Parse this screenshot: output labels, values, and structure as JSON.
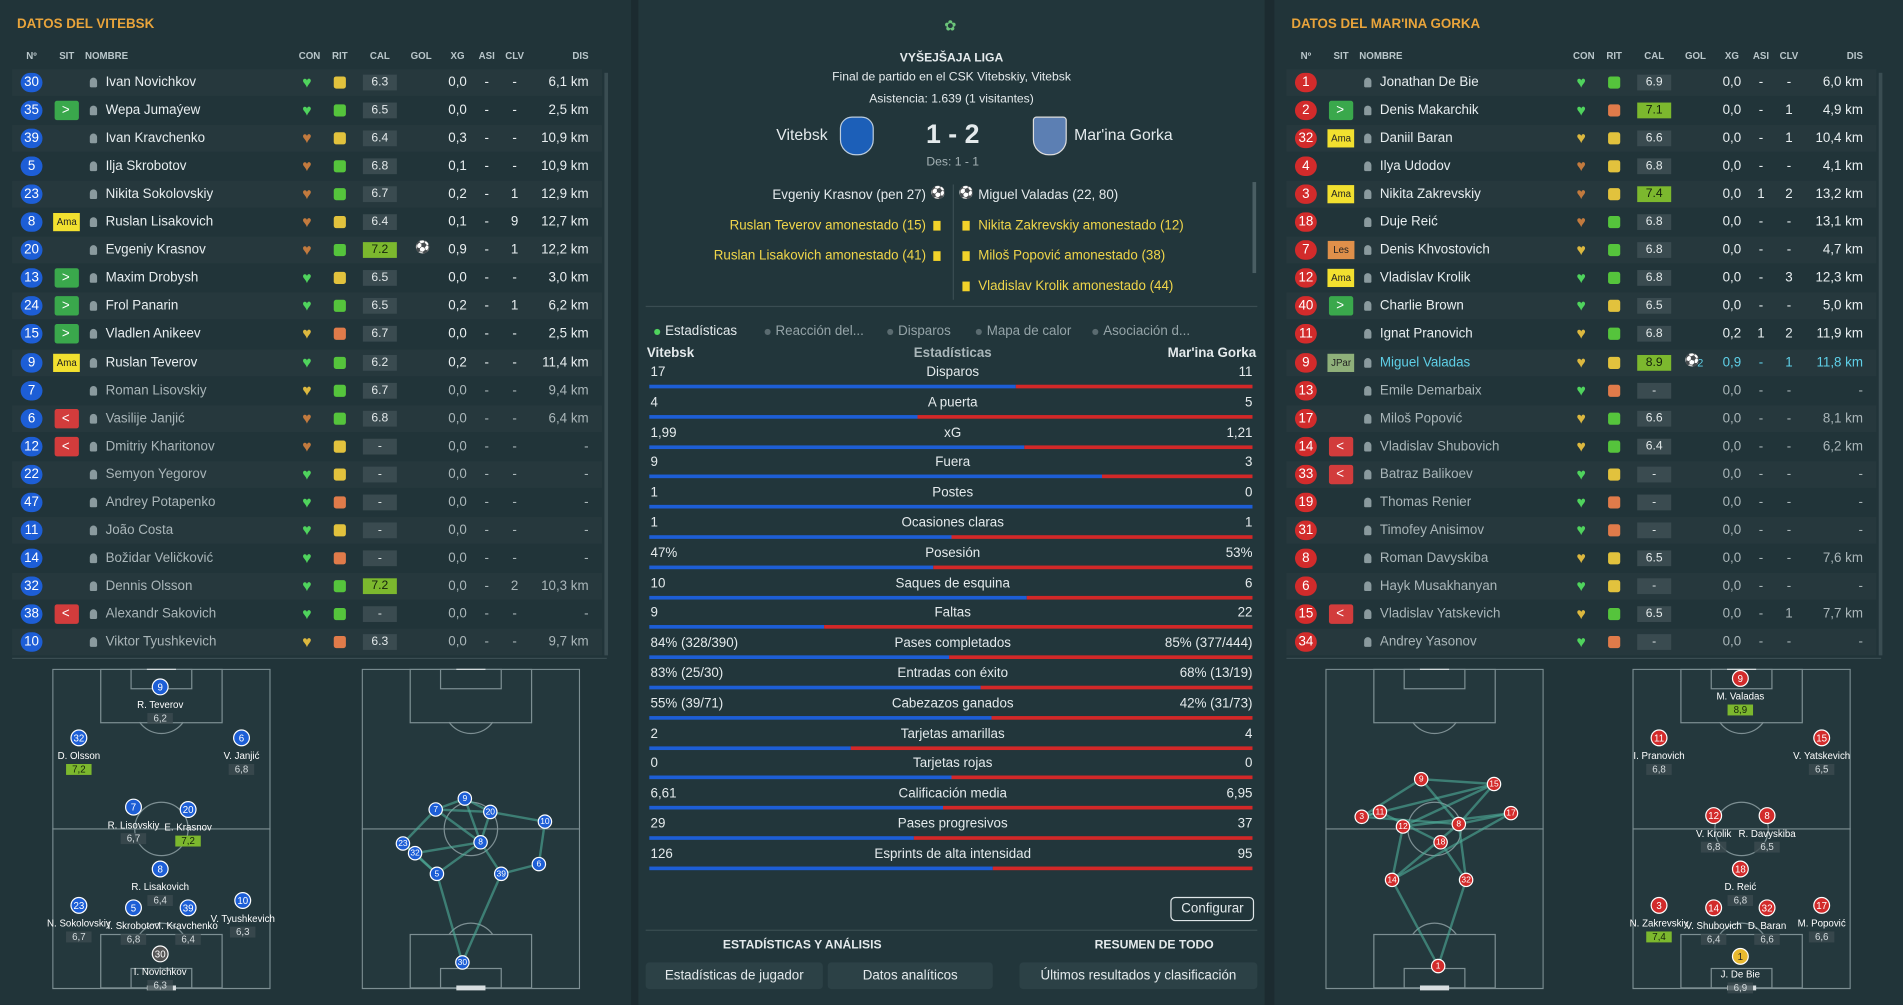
{
  "home": {
    "title": "DATOS DEL VITEBSK",
    "columns": [
      "Nº",
      "SIT",
      "NOMBRE",
      "CON",
      "RIT",
      "CAL",
      "GOL",
      "XG",
      "ASI",
      "CLV",
      "DIS"
    ],
    "players": [
      {
        "number": 30,
        "name": "Ivan Novichkov",
        "rating": "6.3",
        "xg": "0,0",
        "assists": "-",
        "key_passes": "-",
        "distance": "6,1 km"
      },
      {
        "number": 35,
        "name": "Wepa Jumaýew",
        "rating": "6.5",
        "xg": "0,0",
        "assists": "-",
        "key_passes": "-",
        "distance": "2,5 km"
      },
      {
        "number": 39,
        "name": "Ivan Kravchenko",
        "rating": "6.4",
        "xg": "0,3",
        "assists": "-",
        "key_passes": "-",
        "distance": "10,9 km"
      },
      {
        "number": 5,
        "name": "Ilja Skrobotov",
        "rating": "6.8",
        "xg": "0,1",
        "assists": "-",
        "key_passes": "-",
        "distance": "10,9 km"
      },
      {
        "number": 23,
        "name": "Nikita Sokolovskiy",
        "rating": "6.7",
        "xg": "0,2",
        "assists": "-",
        "key_passes": "1",
        "distance": "12,9 km"
      },
      {
        "number": 8,
        "status": "Ama",
        "name": "Ruslan Lisakovich",
        "rating": "6.4",
        "xg": "0,1",
        "assists": "-",
        "key_passes": "9",
        "distance": "12,7 km"
      },
      {
        "number": 20,
        "name": "Evgeniy Krasnov",
        "rating": "7.2",
        "xg": "0,9",
        "assists": "-",
        "key_passes": "1",
        "distance": "12,2 km"
      },
      {
        "number": 13,
        "name": "Maxim Drobysh",
        "rating": "6.5",
        "xg": "0,0",
        "assists": "-",
        "key_passes": "-",
        "distance": "3,0 km"
      },
      {
        "number": 24,
        "name": "Frol Panarin",
        "rating": "6.5",
        "xg": "0,2",
        "assists": "-",
        "key_passes": "1",
        "distance": "6,2 km"
      },
      {
        "number": 15,
        "name": "Vladlen Anikeev",
        "rating": "6.7",
        "xg": "0,0",
        "assists": "-",
        "key_passes": "-",
        "distance": "2,5 km"
      },
      {
        "number": 9,
        "status": "Ama",
        "name": "Ruslan Teverov",
        "rating": "6.2",
        "xg": "0,2",
        "assists": "-",
        "key_passes": "-",
        "distance": "11,4 km"
      },
      {
        "number": 7,
        "name": "Roman Lisovskiy",
        "rating": "6.7",
        "xg": "0,0",
        "assists": "-",
        "key_passes": "-",
        "distance": "9,4 km"
      },
      {
        "number": 6,
        "name": "Vasilije Janjić",
        "rating": "6.8",
        "xg": "0,0",
        "assists": "-",
        "key_passes": "-",
        "distance": "6,4 km"
      },
      {
        "number": 12,
        "name": "Dmitriy Kharitonov",
        "rating": "-",
        "xg": "0,0",
        "assists": "-",
        "key_passes": "-",
        "distance": "-"
      },
      {
        "number": 22,
        "name": "Semyon Yegorov",
        "rating": "-",
        "xg": "0,0",
        "assists": "-",
        "key_passes": "-",
        "distance": "-"
      },
      {
        "number": 47,
        "name": "Andrey Potapenko",
        "rating": "-",
        "xg": "0,0",
        "assists": "-",
        "key_passes": "-",
        "distance": "-"
      },
      {
        "number": 11,
        "name": "João Costa",
        "rating": "-",
        "xg": "0,0",
        "assists": "-",
        "key_passes": "-",
        "distance": "-"
      },
      {
        "number": 14,
        "name": "Božidar Veličković",
        "rating": "-",
        "xg": "0,0",
        "assists": "-",
        "key_passes": "-",
        "distance": "-"
      },
      {
        "number": 32,
        "name": "Dennis Olsson",
        "rating": "7.2",
        "xg": "0,0",
        "assists": "-",
        "key_passes": "2",
        "distance": "10,3 km"
      },
      {
        "number": 38,
        "name": "Alexandr Sakovich",
        "rating": "-",
        "xg": "0,0",
        "assists": "-",
        "key_passes": "-",
        "distance": "-"
      },
      {
        "number": 10,
        "name": "Viktor Tyushkevich",
        "rating": "6.3",
        "xg": "0,0",
        "assists": "-",
        "key_passes": "-",
        "distance": "9,7 km"
      }
    ],
    "lineup": [
      {
        "number": 9,
        "name": "R. Teverov",
        "rating": "6,2"
      },
      {
        "number": 32,
        "name": "D. Olsson",
        "rating": "7,2"
      },
      {
        "number": 6,
        "name": "V. Janjić",
        "rating": "6,8"
      },
      {
        "number": 7,
        "name": "R. Lisovskiy",
        "rating": "6,7"
      },
      {
        "number": 20,
        "name": "E. Krasnov",
        "rating": "7,2"
      },
      {
        "number": 8,
        "name": "R. Lisakovich",
        "rating": "6,4"
      },
      {
        "number": 23,
        "name": "N. Sokolovskiy",
        "rating": "6,7"
      },
      {
        "number": 5,
        "name": "I. Skrobotov",
        "rating": "6,8"
      },
      {
        "number": 39,
        "name": "I. Kravchenko",
        "rating": "6,4"
      },
      {
        "number": 10,
        "name": "V. Tyushkevich",
        "rating": "6,3"
      },
      {
        "number": 30,
        "name": "I. Novichkov",
        "rating": "6,3"
      }
    ],
    "network": [
      9,
      7,
      20,
      10,
      23,
      32,
      8,
      6,
      5,
      39,
      30
    ]
  },
  "away": {
    "title": "DATOS DEL MAR'INA GORKA",
    "columns": [
      "Nº",
      "SIT",
      "NOMBRE",
      "CON",
      "RIT",
      "CAL",
      "GOL",
      "XG",
      "ASI",
      "CLV",
      "DIS"
    ],
    "players": [
      {
        "number": 1,
        "name": "Jonathan De Bie",
        "rating": "6.9",
        "xg": "0,0",
        "assists": "-",
        "key_passes": "-",
        "distance": "6,0 km"
      },
      {
        "number": 2,
        "name": "Denis Makarchik",
        "rating": "7.1",
        "xg": "0,0",
        "assists": "-",
        "key_passes": "1",
        "distance": "4,9 km"
      },
      {
        "number": 32,
        "status": "Ama",
        "name": "Daniil Baran",
        "rating": "6.6",
        "xg": "0,0",
        "assists": "-",
        "key_passes": "1",
        "distance": "10,4 km"
      },
      {
        "number": 4,
        "name": "Ilya Udodov",
        "rating": "6.8",
        "xg": "0,0",
        "assists": "-",
        "key_passes": "-",
        "distance": "4,1 km"
      },
      {
        "number": 3,
        "status": "Ama",
        "name": "Nikita Zakrevskiy",
        "rating": "7.4",
        "xg": "0,0",
        "assists": "1",
        "key_passes": "2",
        "distance": "13,2 km"
      },
      {
        "number": 18,
        "name": "Duje Reić",
        "rating": "6.8",
        "xg": "0,0",
        "assists": "-",
        "key_passes": "-",
        "distance": "13,1 km"
      },
      {
        "number": 7,
        "status": "Les",
        "name": "Denis Khvostovich",
        "rating": "6.8",
        "xg": "0,0",
        "assists": "-",
        "key_passes": "-",
        "distance": "4,7 km"
      },
      {
        "number": 12,
        "status": "Ama",
        "name": "Vladislav Krolik",
        "rating": "6.8",
        "xg": "0,0",
        "assists": "-",
        "key_passes": "3",
        "distance": "12,3 km"
      },
      {
        "number": 40,
        "name": "Charlie Brown",
        "rating": "6.5",
        "xg": "0,0",
        "assists": "-",
        "key_passes": "-",
        "distance": "5,0 km"
      },
      {
        "number": 11,
        "name": "Ignat Pranovich",
        "rating": "6.8",
        "xg": "0,2",
        "assists": "1",
        "key_passes": "2",
        "distance": "11,9 km"
      },
      {
        "number": 9,
        "status": "JPar",
        "name": "Miguel Valadas",
        "rating": "8.9",
        "goals": "2",
        "xg": "0,9",
        "assists": "-",
        "key_passes": "1",
        "distance": "11,8 km"
      },
      {
        "number": 13,
        "name": "Emile Demarbaix",
        "rating": "-",
        "xg": "0,0",
        "assists": "-",
        "key_passes": "-",
        "distance": "-"
      },
      {
        "number": 17,
        "name": "Miloš Popović",
        "rating": "6.6",
        "xg": "0,0",
        "assists": "-",
        "key_passes": "-",
        "distance": "8,1 km"
      },
      {
        "number": 14,
        "name": "Vladislav Shubovich",
        "rating": "6.4",
        "xg": "0,0",
        "assists": "-",
        "key_passes": "-",
        "distance": "6,2 km"
      },
      {
        "number": 33,
        "name": "Batraz Balikoev",
        "rating": "-",
        "xg": "0,0",
        "assists": "-",
        "key_passes": "-",
        "distance": "-"
      },
      {
        "number": 19,
        "name": "Thomas Renier",
        "rating": "-",
        "xg": "0,0",
        "assists": "-",
        "key_passes": "-",
        "distance": "-"
      },
      {
        "number": 31,
        "name": "Timofey Anisimov",
        "rating": "-",
        "xg": "0,0",
        "assists": "-",
        "key_passes": "-",
        "distance": "-"
      },
      {
        "number": 8,
        "name": "Roman Davyskiba",
        "rating": "6.5",
        "xg": "0,0",
        "assists": "-",
        "key_passes": "-",
        "distance": "7,6 km"
      },
      {
        "number": 6,
        "name": "Hayk Musakhanyan",
        "rating": "-",
        "xg": "0,0",
        "assists": "-",
        "key_passes": "-",
        "distance": "-"
      },
      {
        "number": 15,
        "name": "Vladislav Yatskevich",
        "rating": "6.5",
        "xg": "0,0",
        "assists": "-",
        "key_passes": "1",
        "distance": "7,7 km"
      },
      {
        "number": 34,
        "name": "Andrey Yasonov",
        "rating": "-",
        "xg": "0,0",
        "assists": "-",
        "key_passes": "-",
        "distance": "-"
      }
    ],
    "lineup": [
      {
        "number": 9,
        "name": "M. Valadas",
        "rating": "8,9"
      },
      {
        "number": 11,
        "name": "I. Pranovich",
        "rating": "6,8"
      },
      {
        "number": 15,
        "name": "V. Yatskevich",
        "rating": "6,5"
      },
      {
        "number": 12,
        "name": "V. Krolik",
        "rating": "6,8"
      },
      {
        "number": 8,
        "name": "R. Davyskiba",
        "rating": "6,5"
      },
      {
        "number": 18,
        "name": "D. Reić",
        "rating": "6,8"
      },
      {
        "number": 3,
        "name": "N. Zakrevskiy",
        "rating": "7,4"
      },
      {
        "number": 14,
        "name": "V. Shubovich",
        "rating": "6,4"
      },
      {
        "number": 32,
        "name": "D. Baran",
        "rating": "6,6"
      },
      {
        "number": 17,
        "name": "M. Popović",
        "rating": "6,6"
      },
      {
        "number": 1,
        "name": "J. De Bie",
        "rating": "6,9"
      }
    ],
    "network": [
      9,
      15,
      3,
      11,
      12,
      17,
      8,
      18,
      14,
      32,
      1
    ]
  },
  "match": {
    "league": "VYŠEJŠAJA LIGA",
    "venue": "Final de partido en el CSK Vitebskiy, Vitebsk",
    "attendance": "Asistencia: 1.639 (1 visitantes)",
    "home_team": "Vitebsk",
    "score": "1 - 2",
    "away_team": "Mar'ina Gorka",
    "half_time": "Des: 1 - 1",
    "home_events": [
      "Evgeniy Krasnov (pen 27)",
      "Ruslan Teverov amonestado (15)",
      "Ruslan Lisakovich amonestado (41)"
    ],
    "away_events": [
      "Miguel Valadas (22, 80)",
      "Nikita Zakrevskiy amonestado (12)",
      "Miloš Popović amonestado (38)",
      "Vladislav Krolik amonestado (44)"
    ],
    "tabs": [
      "Estadísticas",
      "Reacción del...",
      "Disparos",
      "Mapa de calor",
      "Asociación d..."
    ]
  },
  "stats": {
    "home_team": "Vitebsk",
    "title": "Estadísticas",
    "away_team": "Mar'ina Gorka",
    "rows": [
      {
        "name": "Disparos",
        "home": 17,
        "away": 11
      },
      {
        "name": "A puerta",
        "home": 4,
        "away": 5
      },
      {
        "name": "xG",
        "home": {
          "value": 1.99,
          "label": "1,99"
        },
        "away": {
          "value": 1.21,
          "label": "1,21"
        }
      },
      {
        "name": "Fuera",
        "home": 9,
        "away": 3
      },
      {
        "name": "Postes",
        "home": 1,
        "away": 0
      },
      {
        "name": "Ocasiones claras",
        "home": 1,
        "away": 1
      },
      {
        "name": "Posesión",
        "home": {
          "value": 47,
          "label": "47%"
        },
        "away": {
          "value": 53,
          "label": "53%"
        }
      },
      {
        "name": "Saques de esquina",
        "home": 10,
        "away": 6
      },
      {
        "name": "Faltas",
        "home": 9,
        "away": 22
      },
      {
        "name": "Pases completados",
        "home": {
          "value": 84,
          "label": "84% (328/390)"
        },
        "away": {
          "value": 85,
          "label": "85% (377/444)"
        }
      },
      {
        "name": "Entradas con éxito",
        "home": {
          "value": 83,
          "label": "83% (25/30)"
        },
        "away": {
          "value": 68,
          "label": "68% (13/19)"
        }
      },
      {
        "name": "Cabezazos ganados",
        "home": {
          "value": 55,
          "label": "55% (39/71)"
        },
        "away": {
          "value": 42,
          "label": "42% (31/73)"
        }
      },
      {
        "name": "Tarjetas amarillas",
        "home": 2,
        "away": 4
      },
      {
        "name": "Tarjetas rojas",
        "home": 0,
        "away": 0
      },
      {
        "name": "Calificación media",
        "home": {
          "value": 6.61,
          "label": "6,61"
        },
        "away": {
          "value": 6.95,
          "label": "6,95"
        }
      },
      {
        "name": "Pases progresivos",
        "home": 29,
        "away": 37
      },
      {
        "name": "Esprints de alta intensidad",
        "home": 126,
        "away": 95
      }
    ]
  },
  "footer": {
    "configure": "Configurar",
    "section_left": "ESTADÍSTICAS Y ANÁLISIS",
    "section_right": "RESUMEN DE TODO",
    "buttons": [
      "Estadísticas de jugador",
      "Datos analíticos",
      "Últimos resultados y clasificación"
    ]
  }
}
